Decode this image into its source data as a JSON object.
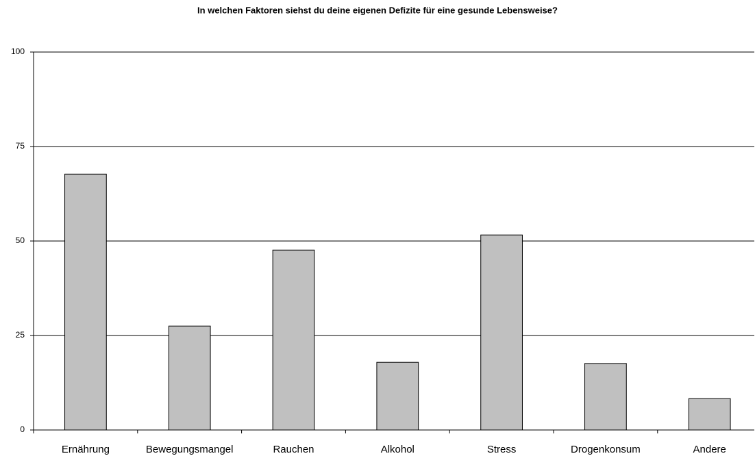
{
  "chart_data": {
    "type": "bar",
    "title": "In welchen Faktoren siehst du deine eigenen Defizite für eine gesunde Lebensweise?",
    "categories": [
      "Ernährung",
      "Bewegungsmangel",
      "Rauchen",
      "Alkohol",
      "Stress",
      "Drogenkonsum",
      "Andere"
    ],
    "values": [
      67.7,
      27.5,
      47.6,
      17.9,
      51.6,
      17.6,
      8.3
    ],
    "color": "#c0c0c0",
    "ylim": [
      0,
      100
    ],
    "yticks": [
      0,
      25,
      50,
      75,
      100
    ],
    "grid": true
  }
}
